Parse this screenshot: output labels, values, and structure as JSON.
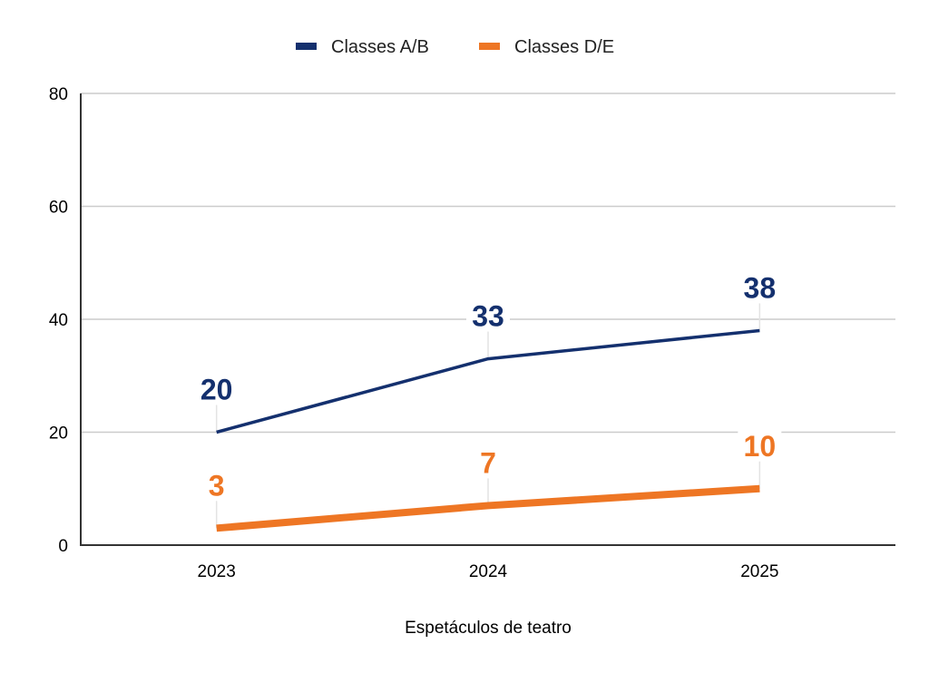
{
  "chart_data": {
    "type": "line",
    "title": "",
    "xlabel": "Espetáculos de teatro",
    "ylabel": "",
    "categories": [
      "2023",
      "2024",
      "2025"
    ],
    "ylim": [
      0,
      80
    ],
    "yticks": [
      0,
      20,
      40,
      60,
      80
    ],
    "ytick_labels": [
      "0",
      "20",
      "40",
      "60",
      "80"
    ],
    "grid": true,
    "legend_position": "top-center",
    "series": [
      {
        "name": "Classes A/B",
        "color": "#14306e",
        "values": [
          20,
          33,
          38
        ],
        "data_labels": [
          "20",
          "33",
          "38"
        ]
      },
      {
        "name": "Classes D/E",
        "color": "#ee7624",
        "values": [
          3,
          7,
          10
        ],
        "data_labels": [
          "3",
          "7",
          "10"
        ]
      }
    ]
  }
}
